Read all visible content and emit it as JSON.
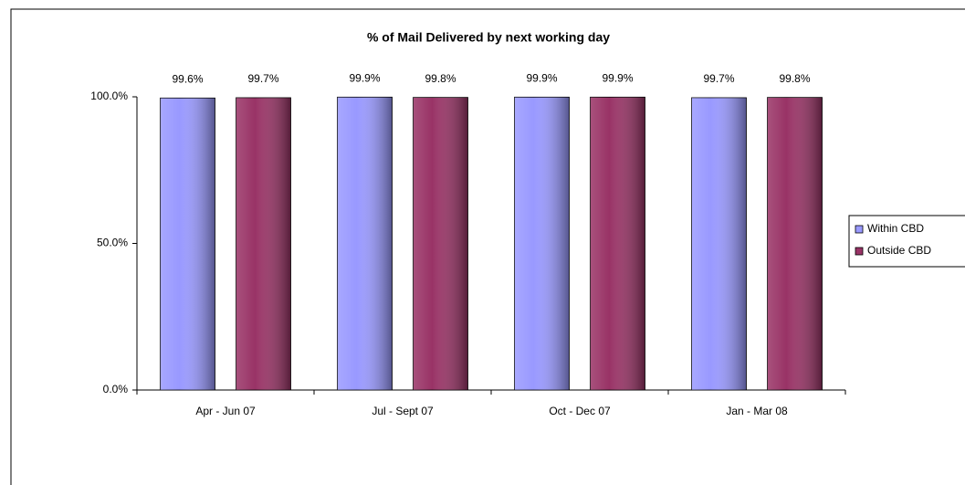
{
  "chart_data": {
    "type": "bar",
    "title": "% of Mail Delivered by next working day",
    "categories": [
      "Apr - Jun 07",
      "Jul - Sept 07",
      "Oct - Dec 07",
      "Jan - Mar 08"
    ],
    "series": [
      {
        "name": "Within CBD",
        "color": "#9999ff",
        "values": [
          99.6,
          99.9,
          99.9,
          99.7
        ],
        "value_labels": [
          "99.6%",
          "99.9%",
          "99.9%",
          "99.7%"
        ]
      },
      {
        "name": "Outside CBD",
        "color": "#993366",
        "values": [
          99.7,
          99.8,
          99.9,
          99.8
        ],
        "value_labels": [
          "99.7%",
          "99.8%",
          "99.9%",
          "99.8%"
        ]
      }
    ],
    "ylim": [
      0,
      100
    ],
    "yticks": [
      {
        "value": 0,
        "label": "0.0%"
      },
      {
        "value": 50,
        "label": "50.0%"
      },
      {
        "value": 100,
        "label": "100.0%"
      }
    ],
    "grid": false,
    "legend": "right"
  }
}
